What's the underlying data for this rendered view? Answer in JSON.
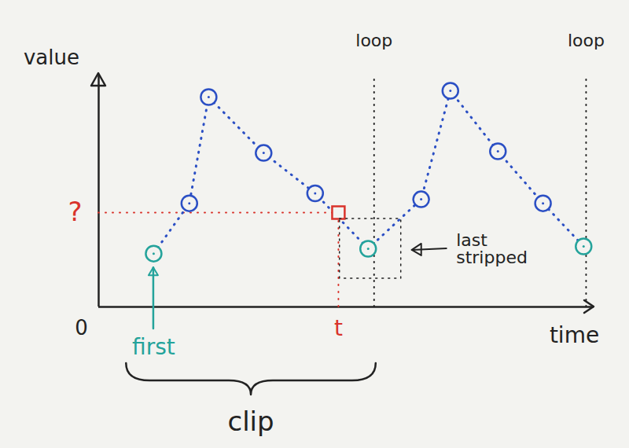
{
  "chart_data": {
    "type": "line",
    "x_label": "time",
    "y_label": "value",
    "x": [
      11.1,
      18.3,
      22.2,
      33.3,
      43.7,
      54.4,
      65.1,
      71.0,
      80.6,
      89.7,
      97.9
    ],
    "xlim": [
      0,
      100
    ],
    "ylim": [
      0,
      100
    ],
    "xticks": [
      0
    ],
    "yticks": [],
    "series": [
      {
        "values": [
          23.0,
          44.7,
          90.5,
          66.4,
          49.0,
          25.1,
          46.4,
          93.2,
          67.1,
          44.7,
          26.1
        ],
        "color": "#2b4fc4",
        "colors": [
          "#24a39b",
          "#2b4fc4",
          "#2b4fc4",
          "#2b4fc4",
          "#2b4fc4",
          "#24a39b",
          "#2b4fc4",
          "#2b4fc4",
          "#2b4fc4",
          "#2b4fc4",
          "#24a39b"
        ],
        "marker": "circle",
        "line_style": "dotted"
      },
      {
        "type": "scatter",
        "x": [
          48.4
        ],
        "values": [
          40.7
        ],
        "color": "#d9332b",
        "marker": "square",
        "line_style": "dotted",
        "x_label": "t",
        "y_label": "?"
      }
    ],
    "loops": [
      {
        "text": "loop",
        "x": 55.6
      },
      {
        "text": "loop",
        "x": 98.4
      }
    ],
    "callouts": [
      {
        "text": "first",
        "x": 11.1,
        "y": 23.0,
        "color": "#24a39b"
      },
      {
        "text": "last stripped",
        "x": 54.4,
        "y": 25.1
      }
    ],
    "span": {
      "text": "clip",
      "x": [
        5.6,
        56.0
      ]
    }
  }
}
